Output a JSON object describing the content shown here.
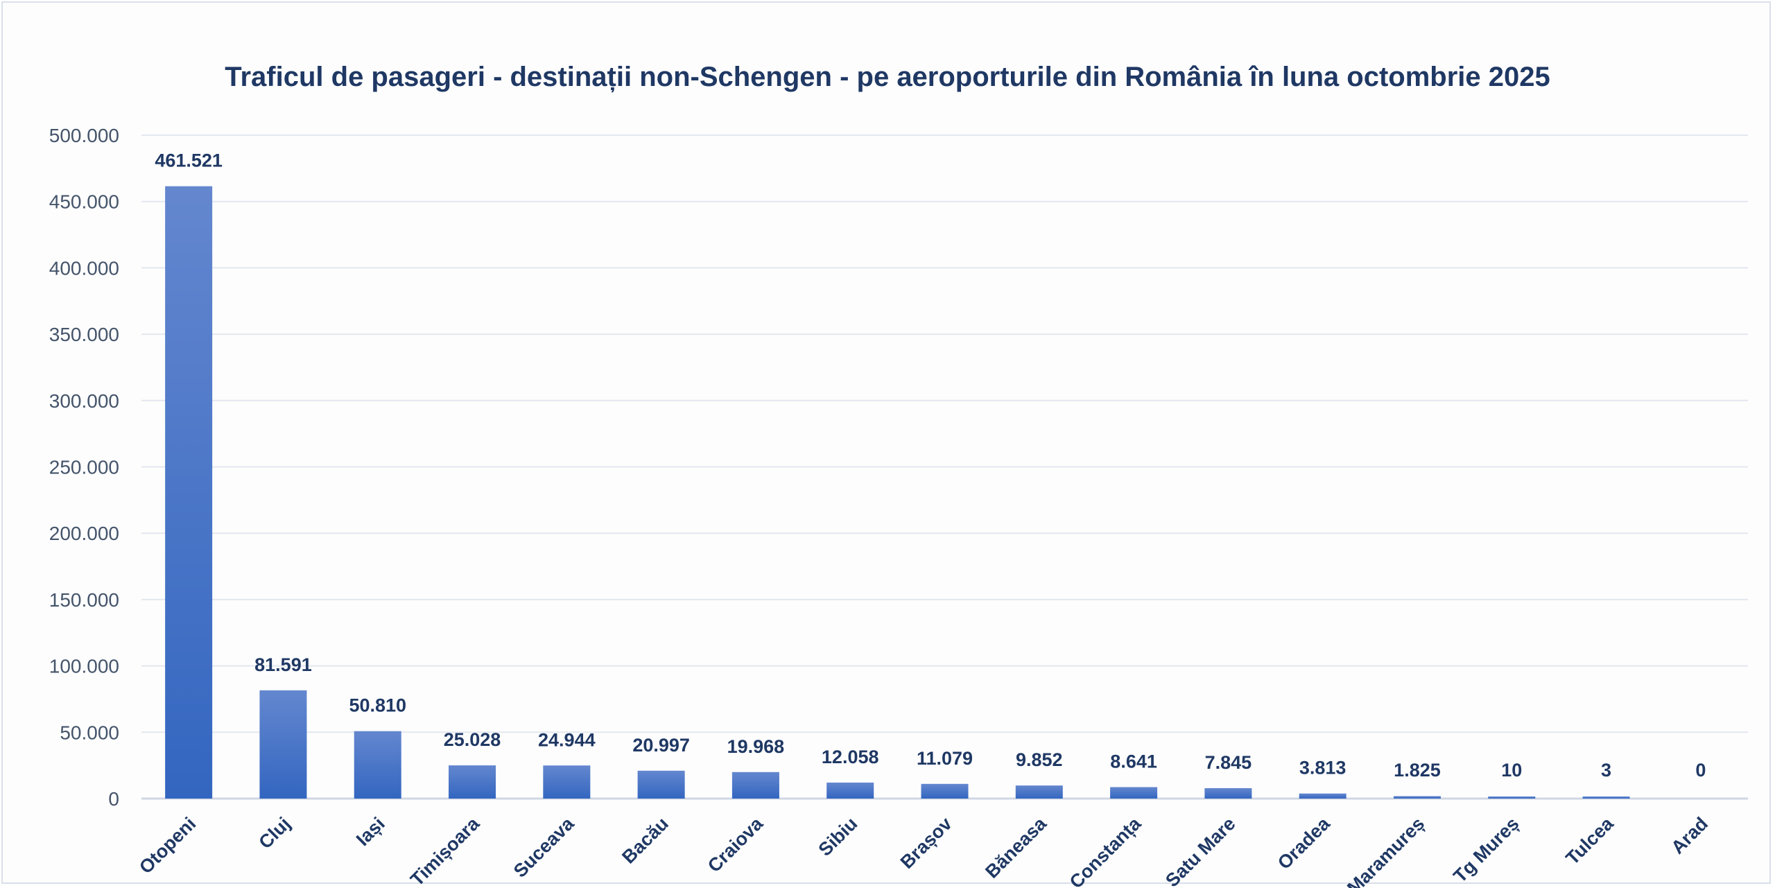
{
  "chart_data": {
    "type": "bar",
    "title": "Traficul de pasageri - destinații non-Schengen - pe aeroporturile din România în luna octombrie 2025",
    "xlabel": "",
    "ylabel": "",
    "ylim": [
      0,
      500000
    ],
    "yticks": [
      0,
      50000,
      100000,
      150000,
      200000,
      250000,
      300000,
      350000,
      400000,
      450000,
      500000
    ],
    "ytick_labels": [
      "0",
      "50.000",
      "100.000",
      "150.000",
      "200.000",
      "250.000",
      "300.000",
      "350.000",
      "400.000",
      "450.000",
      "500.000"
    ],
    "grid": true,
    "legend": "none",
    "bar_color": "#4472c4",
    "categories": [
      "Otopeni",
      "Cluj",
      "Iași",
      "Timișoara",
      "Suceava",
      "Bacău",
      "Craiova",
      "Sibiu",
      "Brașov",
      "Băneasa",
      "Constanța",
      "Satu Mare",
      "Oradea",
      "Maramureș",
      "Tg Mureș",
      "Tulcea",
      "Arad"
    ],
    "values": [
      461521,
      81591,
      50810,
      25028,
      24944,
      20997,
      19968,
      12058,
      11079,
      9852,
      8641,
      7845,
      3813,
      1825,
      10,
      3,
      0
    ],
    "data_labels": [
      "461.521",
      "81.591",
      "50.810",
      "25.028",
      "24.944",
      "20.997",
      "19.968",
      "12.058",
      "11.079",
      "9.852",
      "8.641",
      "7.845",
      "3.813",
      "1.825",
      "10",
      "3",
      "0"
    ]
  }
}
